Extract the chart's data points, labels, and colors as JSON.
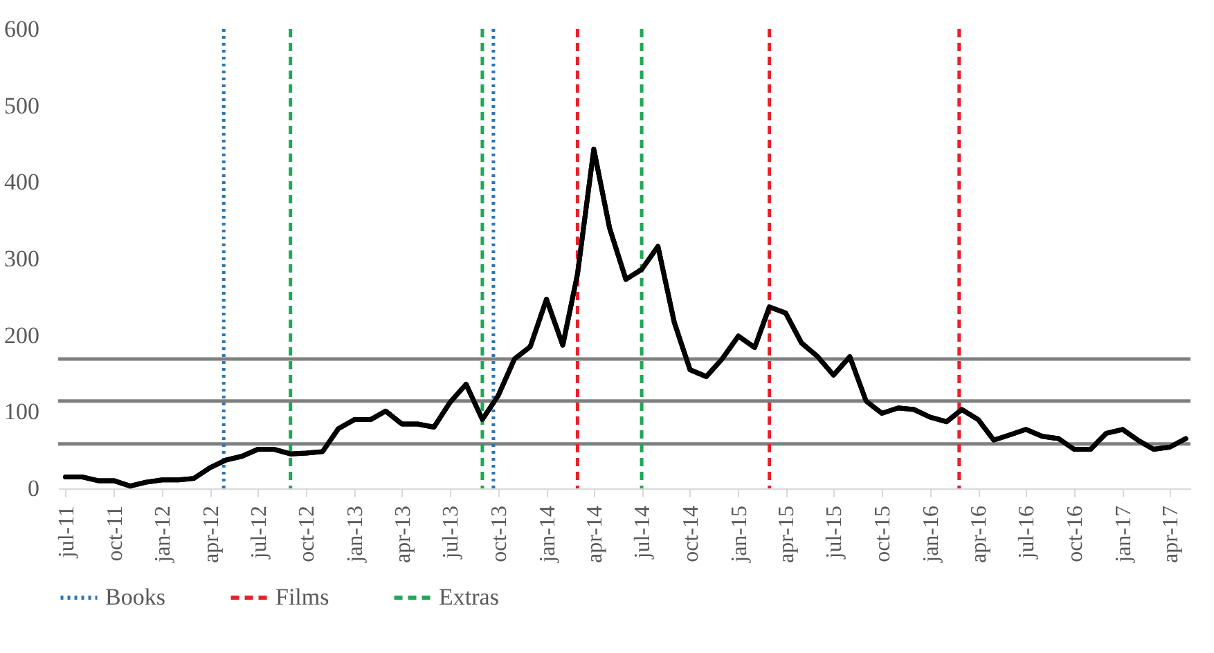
{
  "chart_data": {
    "type": "line",
    "x": [
      "2011-07",
      "2011-08",
      "2011-09",
      "2011-10",
      "2011-11",
      "2011-12",
      "2012-01",
      "2012-02",
      "2012-03",
      "2012-04",
      "2012-05",
      "2012-06",
      "2012-07",
      "2012-08",
      "2012-09",
      "2012-10",
      "2012-11",
      "2012-12",
      "2013-01",
      "2013-02",
      "2013-03",
      "2013-04",
      "2013-05",
      "2013-06",
      "2013-07",
      "2013-08",
      "2013-09",
      "2013-10",
      "2013-11",
      "2013-12",
      "2014-01",
      "2014-02",
      "2014-03",
      "2014-04",
      "2014-05",
      "2014-06",
      "2014-07",
      "2014-08",
      "2014-09",
      "2014-10",
      "2014-11",
      "2014-12",
      "2015-01",
      "2015-02",
      "2015-03",
      "2015-04",
      "2015-05",
      "2015-06",
      "2015-07",
      "2015-08",
      "2015-09",
      "2015-10",
      "2015-11",
      "2015-12",
      "2016-01",
      "2016-02",
      "2016-03",
      "2016-04",
      "2016-05",
      "2016-06",
      "2016-07",
      "2016-08",
      "2016-09",
      "2016-10",
      "2016-11",
      "2016-12",
      "2017-01",
      "2017-02",
      "2017-03",
      "2017-04",
      "2017-05"
    ],
    "series": [
      {
        "color": "#000000",
        "values": [
          15,
          15,
          10,
          10,
          3,
          8,
          11,
          11,
          13,
          27,
          37,
          42,
          51,
          51,
          45,
          46,
          48,
          78,
          90,
          90,
          101,
          84,
          84,
          80,
          112,
          136,
          90,
          121,
          169,
          185,
          247,
          187,
          280,
          443,
          340,
          273,
          286,
          316,
          217,
          155,
          146,
          169,
          199,
          184,
          237,
          229,
          190,
          172,
          148,
          172,
          114,
          98,
          105,
          103,
          93,
          87,
          103,
          90,
          63,
          70,
          77,
          68,
          65,
          51,
          51,
          72,
          77,
          62,
          51,
          54,
          65
        ]
      }
    ],
    "xlim": [
      "2011-06-17",
      "2017-05-10"
    ],
    "xticks": [
      {
        "value": "2011-07",
        "label": "jul-11"
      },
      {
        "value": "2011-10",
        "label": "oct-11"
      },
      {
        "value": "2012-01",
        "label": "jan-12"
      },
      {
        "value": "2012-04",
        "label": "apr-12"
      },
      {
        "value": "2012-07",
        "label": "jul-12"
      },
      {
        "value": "2012-10",
        "label": "oct-12"
      },
      {
        "value": "2013-01",
        "label": "jan-13"
      },
      {
        "value": "2013-04",
        "label": "apr-13"
      },
      {
        "value": "2013-07",
        "label": "jul-13"
      },
      {
        "value": "2013-10",
        "label": "oct-13"
      },
      {
        "value": "2014-01",
        "label": "jan-14"
      },
      {
        "value": "2014-04",
        "label": "apr-14"
      },
      {
        "value": "2014-07",
        "label": "jul-14"
      },
      {
        "value": "2014-10",
        "label": "oct-14"
      },
      {
        "value": "2015-01",
        "label": "jan-15"
      },
      {
        "value": "2015-04",
        "label": "apr-15"
      },
      {
        "value": "2015-07",
        "label": "jul-15"
      },
      {
        "value": "2015-10",
        "label": "oct-15"
      },
      {
        "value": "2016-01",
        "label": "jan-16"
      },
      {
        "value": "2016-04",
        "label": "apr-16"
      },
      {
        "value": "2016-07",
        "label": "jul-16"
      },
      {
        "value": "2016-10",
        "label": "oct-16"
      },
      {
        "value": "2017-01",
        "label": "jan-17"
      },
      {
        "value": "2017-04",
        "label": "apr-17"
      }
    ],
    "ylim": [
      0,
      600
    ],
    "yticks": [
      0,
      100,
      200,
      300,
      400,
      500,
      600
    ],
    "ref_lines": [
      {
        "axis": "y",
        "value": 58,
        "color": "#7f7f7f"
      },
      {
        "axis": "y",
        "value": 114,
        "color": "#7f7f7f"
      },
      {
        "axis": "y",
        "value": 169,
        "color": "#7f7f7f"
      },
      {
        "axis": "x",
        "value": "2012-04-27",
        "label": "Books",
        "color": "#2e75b6",
        "line_style": "dotted"
      },
      {
        "axis": "x",
        "value": "2013-09-22",
        "color": "#2e75b6",
        "line_style": "dotted"
      },
      {
        "axis": "x",
        "value": "2014-03",
        "label": "Films",
        "color": "#e8202a",
        "line_style": "dashed"
      },
      {
        "axis": "x",
        "value": "2015-03",
        "color": "#e8202a",
        "line_style": "dashed"
      },
      {
        "axis": "x",
        "value": "2016-02-25",
        "color": "#e8202a",
        "line_style": "dashed"
      },
      {
        "axis": "x",
        "value": "2012-09",
        "label": "Extras",
        "color": "#1fa855",
        "line_style": "dashed"
      },
      {
        "axis": "x",
        "value": "2013-09",
        "color": "#1fa855",
        "line_style": "dashed"
      },
      {
        "axis": "x",
        "value": "2014-07",
        "color": "#1fa855",
        "line_style": "dashed"
      }
    ],
    "legend": "bottom",
    "line_style": "solid"
  }
}
